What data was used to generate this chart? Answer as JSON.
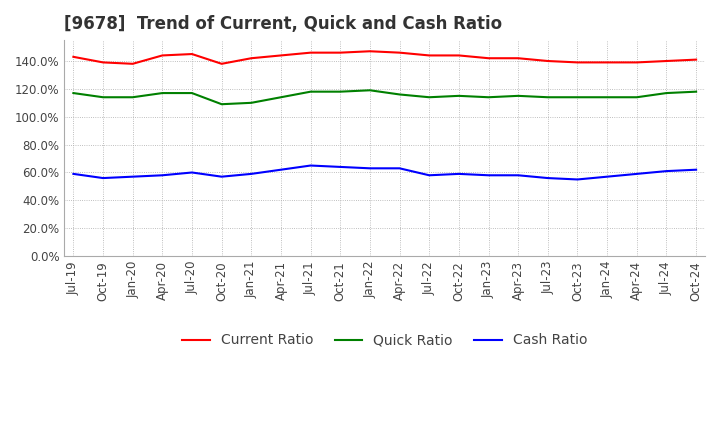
{
  "title": "[9678]  Trend of Current, Quick and Cash Ratio",
  "title_fontsize": 12,
  "ylim": [
    0,
    1.55
  ],
  "ytick_values": [
    0.0,
    0.2,
    0.4,
    0.6,
    0.8,
    1.0,
    1.2,
    1.4
  ],
  "x_labels": [
    "Jul-19",
    "Oct-19",
    "Jan-20",
    "Apr-20",
    "Jul-20",
    "Oct-20",
    "Jan-21",
    "Apr-21",
    "Jul-21",
    "Oct-21",
    "Jan-22",
    "Apr-22",
    "Jul-22",
    "Oct-22",
    "Jan-23",
    "Apr-23",
    "Jul-23",
    "Oct-23",
    "Jan-24",
    "Apr-24",
    "Jul-24",
    "Oct-24"
  ],
  "current_ratio": [
    1.43,
    1.39,
    1.38,
    1.44,
    1.45,
    1.38,
    1.42,
    1.44,
    1.46,
    1.46,
    1.47,
    1.46,
    1.44,
    1.44,
    1.42,
    1.42,
    1.4,
    1.39,
    1.39,
    1.39,
    1.4,
    1.41
  ],
  "quick_ratio": [
    1.17,
    1.14,
    1.14,
    1.17,
    1.17,
    1.09,
    1.1,
    1.14,
    1.18,
    1.18,
    1.19,
    1.16,
    1.14,
    1.15,
    1.14,
    1.15,
    1.14,
    1.14,
    1.14,
    1.14,
    1.17,
    1.18
  ],
  "cash_ratio": [
    0.59,
    0.56,
    0.57,
    0.58,
    0.6,
    0.57,
    0.59,
    0.62,
    0.65,
    0.64,
    0.63,
    0.63,
    0.58,
    0.59,
    0.58,
    0.58,
    0.56,
    0.55,
    0.57,
    0.59,
    0.61,
    0.62
  ],
  "line_colors": [
    "#ff0000",
    "#008000",
    "#0000ff"
  ],
  "line_labels": [
    "Current Ratio",
    "Quick Ratio",
    "Cash Ratio"
  ],
  "bg_color": "#ffffff",
  "grid_color": "#aaaaaa",
  "legend_fontsize": 10,
  "tick_fontsize": 8.5
}
